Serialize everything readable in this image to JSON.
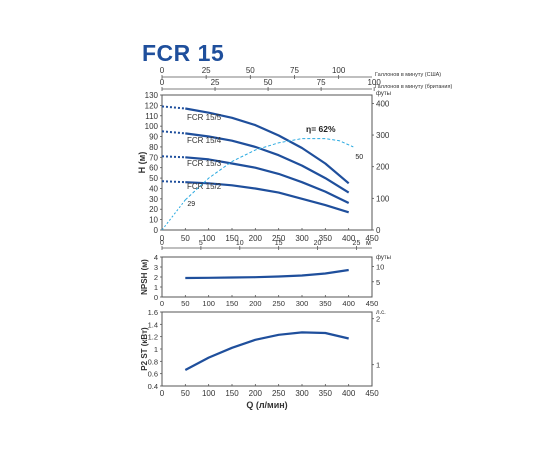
{
  "page": {
    "title": "FCR 15"
  },
  "colors": {
    "curve": "#1f4f9c",
    "efficiency": "#29a9e0",
    "frame": "#555555"
  },
  "chart_data": [
    {
      "name": "head",
      "type": "line",
      "xlabel": "",
      "ylabel": "H (м)",
      "ylabel_right": "футы",
      "xlim": [
        0,
        450
      ],
      "ylim": [
        0,
        130
      ],
      "x_ticks": [
        0,
        50,
        100,
        150,
        200,
        250,
        300,
        350,
        400,
        450
      ],
      "y_ticks": [
        0,
        10,
        20,
        30,
        40,
        50,
        60,
        70,
        80,
        90,
        100,
        110,
        120,
        130
      ],
      "right_ticks": {
        "unit": "ft",
        "values": [
          0,
          100,
          200,
          300,
          400
        ]
      },
      "top_axes": [
        {
          "label": "Галлонов в минуту (США)",
          "values": [
            0,
            25,
            50,
            75,
            100
          ],
          "factor": 3.785
        },
        {
          "label": "Галлонов в минуту (британия)",
          "values": [
            0,
            25,
            50,
            75,
            100
          ],
          "factor": 4.546
        }
      ],
      "bottom_axis2": {
        "label": "м",
        "values": [
          0,
          5,
          10,
          15,
          20,
          25
        ],
        "factor": 16.667
      },
      "series": [
        {
          "name": "FCR 15/5",
          "x": [
            50,
            100,
            150,
            200,
            250,
            300,
            350,
            400
          ],
          "y": [
            117,
            113,
            108,
            101,
            91,
            79,
            64,
            45
          ],
          "lead_x": [
            0,
            50
          ],
          "lead_y": [
            119,
            117
          ]
        },
        {
          "name": "FCR 15/4",
          "x": [
            50,
            100,
            150,
            200,
            250,
            300,
            350,
            400
          ],
          "y": [
            93,
            90,
            86,
            80,
            72,
            62,
            50,
            36
          ],
          "lead_x": [
            0,
            50
          ],
          "lead_y": [
            95,
            93
          ]
        },
        {
          "name": "FCR 15/3",
          "x": [
            50,
            100,
            150,
            200,
            250,
            300,
            350,
            400
          ],
          "y": [
            70,
            68,
            64,
            60,
            54,
            46,
            37,
            26
          ],
          "lead_x": [
            0,
            50
          ],
          "lead_y": [
            71,
            70
          ]
        },
        {
          "name": "FCR 15/2",
          "x": [
            50,
            100,
            150,
            200,
            250,
            300,
            350,
            400
          ],
          "y": [
            46,
            45,
            43,
            40,
            36,
            30,
            24,
            17
          ],
          "lead_x": [
            0,
            50
          ],
          "lead_y": [
            47,
            46
          ]
        }
      ],
      "efficiency": {
        "label": "η= 62%",
        "start_label": "29",
        "end_label": "50",
        "x": [
          50,
          100,
          150,
          200,
          250,
          300,
          350,
          380,
          410
        ],
        "y": [
          29,
          50,
          66,
          77,
          84,
          88,
          88,
          86,
          80
        ]
      }
    },
    {
      "name": "npsh",
      "type": "line",
      "xlabel": "",
      "ylabel": "NPSH (м)",
      "ylabel_right": "футы",
      "xlim": [
        0,
        450
      ],
      "ylim": [
        0,
        4
      ],
      "y_ticks": [
        0,
        1,
        2,
        3,
        4
      ],
      "right_ticks": {
        "unit": "ft",
        "values": [
          5,
          10
        ]
      },
      "series": [
        {
          "name": "",
          "x": [
            50,
            100,
            150,
            200,
            250,
            300,
            350,
            400
          ],
          "y": [
            1.9,
            1.92,
            1.95,
            1.98,
            2.05,
            2.15,
            2.35,
            2.7
          ]
        }
      ]
    },
    {
      "name": "power",
      "type": "line",
      "xlabel": "Q (л/мин)",
      "ylabel": "P2 ST (кВт)",
      "ylabel_right": "л.с.",
      "xlim": [
        0,
        450
      ],
      "ylim": [
        0.4,
        1.6
      ],
      "x_ticks": [
        0,
        50,
        100,
        150,
        200,
        250,
        300,
        350,
        400,
        450
      ],
      "y_ticks": [
        0.4,
        0.6,
        0.8,
        1.0,
        1.2,
        1.4,
        1.6
      ],
      "y_tick_labels": [
        "0.4",
        "0.6",
        "0.8",
        "1",
        "1.2",
        "1.4",
        "1.6"
      ],
      "right_ticks": {
        "unit": "hp",
        "values": [
          1,
          2
        ]
      },
      "series": [
        {
          "name": "",
          "x": [
            50,
            100,
            150,
            200,
            250,
            300,
            350,
            400
          ],
          "y": [
            0.66,
            0.86,
            1.02,
            1.15,
            1.23,
            1.27,
            1.26,
            1.17
          ]
        }
      ]
    }
  ]
}
